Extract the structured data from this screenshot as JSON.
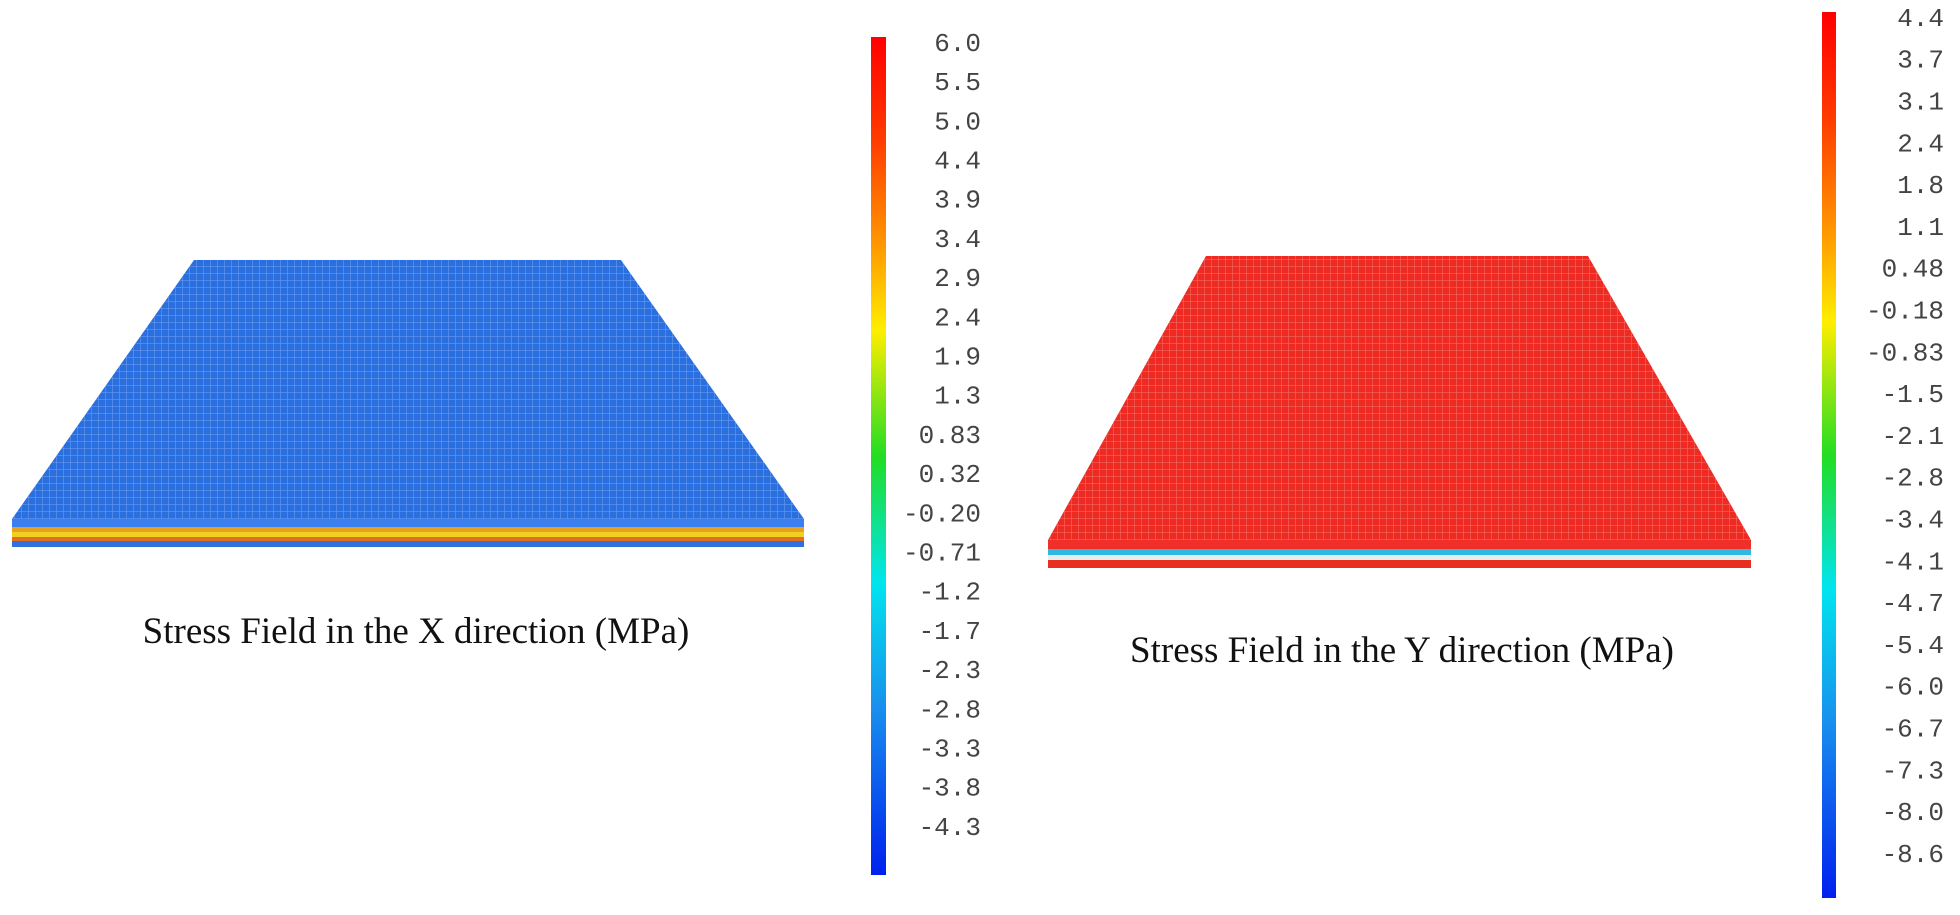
{
  "panels": [
    {
      "caption": "Stress Field in the X direction (MPa)",
      "colorbar_labels": [
        "6.0",
        "5.5",
        "5.0",
        "4.4",
        "3.9",
        "3.4",
        "2.9",
        "2.4",
        "1.9",
        "1.3",
        "0.83",
        "0.32",
        "-0.20",
        "-0.71",
        "-1.2",
        "-1.7",
        "-2.3",
        "-2.8",
        "-3.3",
        "-3.8",
        "-4.3"
      ]
    },
    {
      "caption": "Stress Field in the Y direction (MPa)",
      "colorbar_labels": [
        "4.4",
        "3.7",
        "3.1",
        "2.4",
        "1.8",
        "1.1",
        "0.48",
        "-0.18",
        "-0.83",
        "-1.5",
        "-2.1",
        "-2.8",
        "-3.4",
        "-4.1",
        "-4.7",
        "-5.4",
        "-6.0",
        "-6.7",
        "-7.3",
        "-8.0",
        "-8.6"
      ]
    }
  ]
}
